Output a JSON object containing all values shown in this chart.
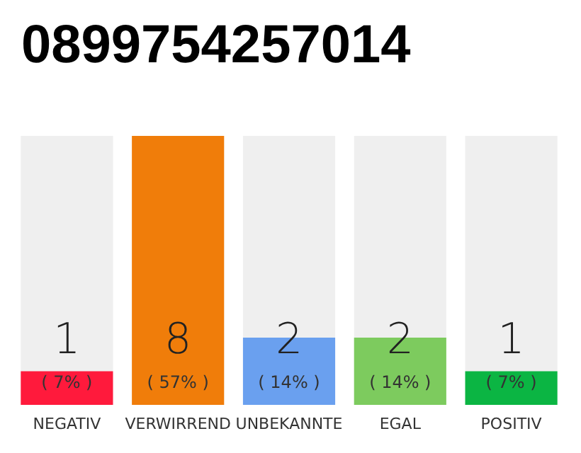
{
  "chart_data": {
    "type": "bar",
    "title": "0899754257014",
    "categories": [
      "NEGATIV",
      "VERWIRREND",
      "UNBEKANNTE",
      "EGAL",
      "POSITIV"
    ],
    "values": [
      1,
      8,
      2,
      2,
      1
    ],
    "colors": [
      "#ff1a3c",
      "#f07d0a",
      "#6aa0ef",
      "#7dcb5e",
      "#0bb543"
    ],
    "data_labels": true,
    "annotations": [
      "( 7% )",
      "( 57% )",
      "( 14% )",
      "( 14% )",
      "( 7% )"
    ]
  }
}
